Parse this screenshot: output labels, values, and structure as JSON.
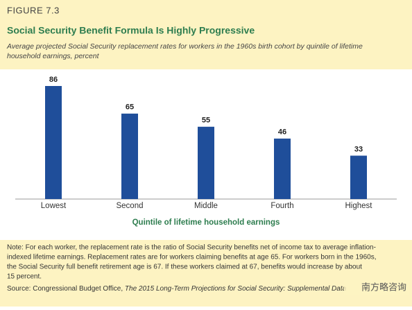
{
  "chart_data": {
    "type": "bar",
    "figure_label": "FIGURE 7.3",
    "title": "Social Security Benefit Formula Is Highly Progressive",
    "subtitle": [
      "Average projected Social Security replacement rates for workers in the 1960s birth cohort by quintile of lifetime",
      "household earnings, percent"
    ],
    "categories": [
      "Lowest",
      "Second",
      "Middle",
      "Fourth",
      "Highest"
    ],
    "values": [
      86,
      65,
      55,
      46,
      33
    ],
    "color": "#1f4e9a",
    "x_label": "Quintile of lifetime household earnings",
    "note": [
      "Note: For each worker, the replacement rate is the ratio of Social Security benefits net of income tax to average inflation-",
      "indexed lifetime earnings. Replacement rates are for workers claiming benefits at age 65. For workers born in the 1960s,",
      "the Social Security full benefit retirement age is 67. If these workers claimed at 67, benefits would increase by about",
      "15 percent."
    ],
    "source_prefix": "Source: Congressional Budget Office, ",
    "source_title": "The 2015 Long-Term Projections for Social Security: Supplemental Data",
    "watermark": "南方略咨询"
  }
}
